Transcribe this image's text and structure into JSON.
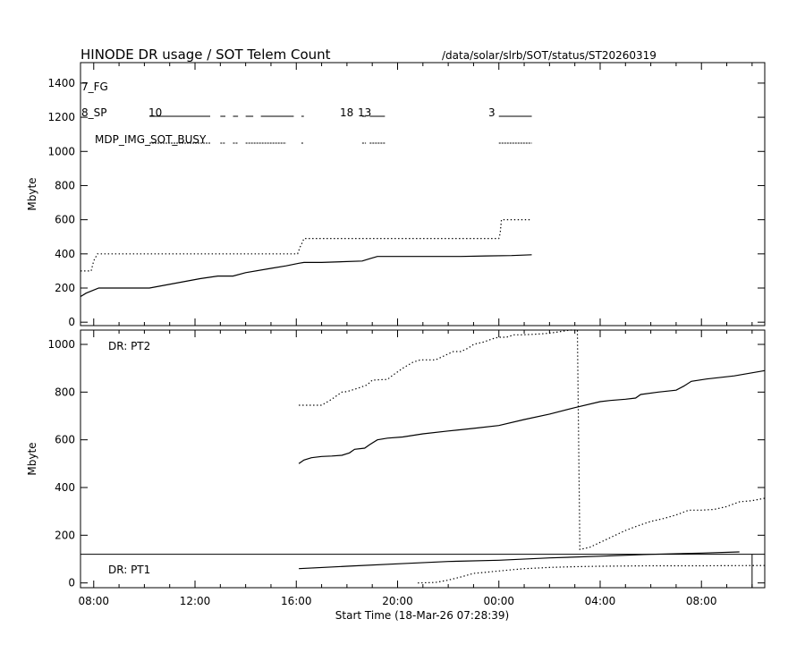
{
  "header": {
    "title": "HINODE DR usage / SOT Telem Count",
    "path": "/data/solar/slrb/SOT/status/ST20260319"
  },
  "xaxis": {
    "label": "Start Time (18-Mar-26 07:28:39)",
    "ticks": [
      "08:00",
      "12:00",
      "16:00",
      "20:00",
      "00:00",
      "04:00",
      "08:00"
    ],
    "tick_hours": [
      8,
      12,
      16,
      20,
      24,
      28,
      32
    ],
    "range_hours": [
      7.478,
      34.5
    ]
  },
  "chart_data": [
    {
      "type": "line",
      "panel": "top",
      "ylabel": "Mbyte",
      "ylim": [
        -20,
        1520
      ],
      "yticks": [
        0,
        200,
        400,
        600,
        800,
        1000,
        1200,
        1400
      ],
      "series": [
        {
          "style": "solid",
          "x": [
            7.48,
            7.7,
            8.2,
            10.2,
            12.2,
            12.9,
            13.5,
            14.0,
            15.0,
            15.6,
            16.1,
            16.3,
            17.0,
            18.6,
            18.9,
            19.2,
            20.5,
            21.5,
            22.5,
            23.5,
            24.5,
            25.3
          ],
          "y": [
            150,
            170,
            200,
            200,
            255,
            270,
            270,
            290,
            315,
            330,
            345,
            350,
            350,
            358,
            372,
            385,
            385,
            385,
            385,
            388,
            390,
            395
          ]
        },
        {
          "style": "dotted",
          "x": [
            7.48,
            7.7,
            7.9,
            8.0,
            8.15,
            16.05,
            16.15,
            16.25,
            16.3,
            24.0,
            24.05,
            24.1,
            25.3
          ],
          "y": [
            300,
            300,
            300,
            360,
            400,
            400,
            440,
            470,
            490,
            490,
            520,
            600,
            600
          ]
        }
      ],
      "annotations": {
        "fg": "7_FG",
        "sp": "8_SP",
        "busy": "MDP_IMG_SOT_BUSY",
        "n10": "10",
        "n18": "18",
        "n13": "13",
        "n3": "3"
      },
      "event_bars": {
        "sp": [
          [
            10.2,
            12.6
          ],
          [
            13.0,
            13.2
          ],
          [
            13.5,
            13.7
          ],
          [
            14.0,
            14.3
          ],
          [
            14.6,
            15.9
          ],
          [
            16.2,
            16.3
          ],
          [
            18.6,
            18.75
          ],
          [
            18.9,
            19.5
          ],
          [
            24.0,
            25.3
          ]
        ],
        "busy": [
          [
            10.2,
            12.6
          ],
          [
            13.0,
            13.2
          ],
          [
            13.5,
            13.7
          ],
          [
            14.0,
            15.6
          ],
          [
            16.2,
            16.3
          ],
          [
            18.6,
            18.75
          ],
          [
            18.9,
            19.5
          ],
          [
            24.0,
            25.3
          ]
        ]
      }
    },
    {
      "type": "line",
      "panel": "bottom",
      "ylabel": "Mbyte",
      "ylim": [
        -20,
        1060
      ],
      "yticks": [
        0,
        200,
        400,
        600,
        800,
        1000
      ],
      "panel_labels": {
        "pt2": "DR: PT2",
        "pt1": "DR: PT1"
      },
      "pt1_divider": 120,
      "series": [
        {
          "style": "solid",
          "x": [
            16.1,
            16.3,
            16.6,
            17.0,
            17.4,
            17.8,
            18.1,
            18.3,
            18.7,
            18.9,
            19.2,
            19.6,
            20.2,
            21.0,
            22.0,
            23.0,
            24.0,
            25.0,
            26.0,
            27.0,
            28.0,
            28.4,
            29.0,
            29.4,
            29.6,
            30.3,
            31.0,
            31.3,
            31.6,
            32.2,
            33.3,
            34.5
          ],
          "y": [
            500,
            515,
            525,
            530,
            532,
            535,
            545,
            560,
            565,
            580,
            600,
            607,
            612,
            625,
            637,
            648,
            660,
            685,
            708,
            735,
            760,
            765,
            770,
            775,
            790,
            800,
            808,
            825,
            845,
            855,
            868,
            890
          ]
        },
        {
          "style": "dotted",
          "x": [
            16.1,
            17.0,
            17.4,
            17.8,
            18.0,
            18.4,
            18.8,
            19.0,
            19.3,
            19.6,
            19.8,
            20.2,
            20.6,
            20.9,
            21.2,
            21.5,
            21.8,
            22.2,
            22.5,
            22.8,
            23.0,
            23.4,
            23.8,
            24.0,
            24.3,
            24.6,
            24.9,
            25.3,
            25.8,
            26.2,
            26.8,
            27.1,
            27.2,
            27.6,
            27.8,
            28.2,
            28.6,
            29.0,
            29.5,
            30.0,
            30.5,
            31.0,
            31.5,
            32.0,
            32.5,
            33.0,
            33.5,
            34.0,
            34.5
          ],
          "y": [
            745,
            745,
            770,
            800,
            802,
            815,
            830,
            850,
            852,
            853,
            870,
            900,
            925,
            935,
            935,
            935,
            950,
            970,
            970,
            985,
            1000,
            1010,
            1025,
            1030,
            1030,
            1040,
            1040,
            1042,
            1045,
            1050,
            1060,
            1060,
            140,
            150,
            160,
            180,
            200,
            220,
            240,
            258,
            270,
            285,
            305,
            305,
            308,
            320,
            340,
            345,
            355
          ]
        },
        {
          "style": "solid",
          "group": "pt1",
          "x": [
            16.1,
            18.0,
            20.0,
            22.0,
            24.0,
            26.0,
            28.0,
            30.0,
            32.0,
            33.5
          ],
          "y": [
            60,
            70,
            80,
            90,
            95,
            105,
            112,
            120,
            125,
            130
          ]
        },
        {
          "style": "dotted",
          "group": "pt1",
          "x": [
            20.8,
            21.5,
            22.0,
            22.5,
            23.0,
            23.5,
            24.0,
            24.5,
            25.0,
            25.5,
            26.0,
            27.0,
            28.0,
            30.0,
            32.0,
            34.5
          ],
          "y": [
            0,
            2,
            12,
            25,
            40,
            45,
            50,
            55,
            60,
            62,
            65,
            68,
            70,
            72,
            72,
            73
          ]
        }
      ],
      "markers": {
        "vline_x": 34.0
      }
    }
  ]
}
